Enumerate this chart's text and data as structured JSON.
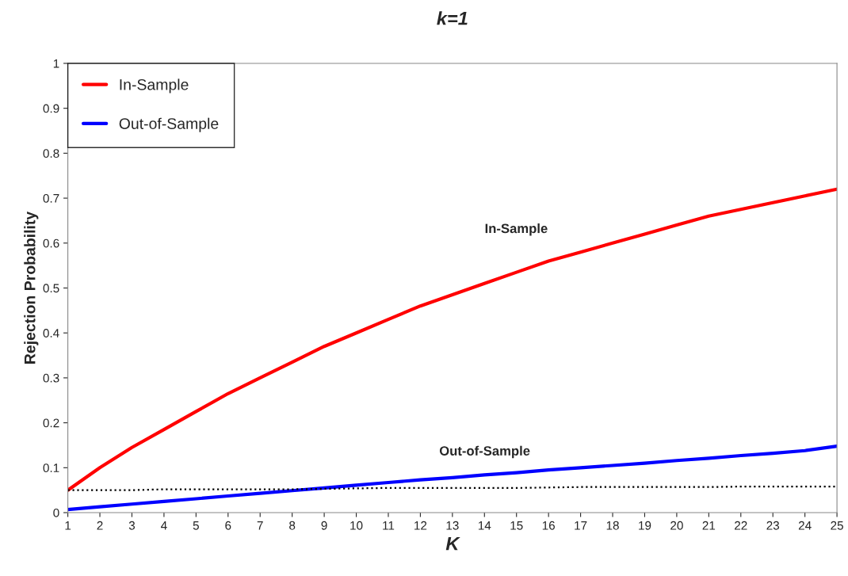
{
  "chart_data": {
    "type": "line",
    "title": "k=1",
    "xlabel": "K",
    "ylabel": "Rejection Probability",
    "x": [
      1,
      2,
      3,
      4,
      5,
      6,
      7,
      8,
      9,
      10,
      11,
      12,
      13,
      14,
      15,
      16,
      17,
      18,
      19,
      20,
      21,
      22,
      23,
      24,
      25
    ],
    "series": [
      {
        "name": "In-Sample",
        "color": "#ff0000",
        "line_style": "solid",
        "values": [
          0.05,
          0.1,
          0.145,
          0.185,
          0.225,
          0.265,
          0.3,
          0.335,
          0.37,
          0.4,
          0.43,
          0.46,
          0.485,
          0.51,
          0.535,
          0.56,
          0.58,
          0.6,
          0.62,
          0.64,
          0.66,
          0.675,
          0.69,
          0.705,
          0.72
        ]
      },
      {
        "name": "Out-of-Sample",
        "color": "#0000ff",
        "line_style": "solid",
        "values": [
          0.007,
          0.013,
          0.019,
          0.025,
          0.031,
          0.037,
          0.043,
          0.049,
          0.055,
          0.061,
          0.067,
          0.073,
          0.078,
          0.084,
          0.089,
          0.095,
          0.1,
          0.105,
          0.11,
          0.116,
          0.121,
          0.127,
          0.132,
          0.138,
          0.148
        ]
      },
      {
        "color": "#000000",
        "line_style": "dotted",
        "values": [
          0.05,
          0.05,
          0.05,
          0.052,
          0.052,
          0.052,
          0.052,
          0.052,
          0.053,
          0.054,
          0.055,
          0.055,
          0.055,
          0.055,
          0.055,
          0.056,
          0.057,
          0.057,
          0.057,
          0.057,
          0.057,
          0.058,
          0.058,
          0.058,
          0.058
        ]
      }
    ],
    "annotations": [
      "In-Sample",
      "Out-of-Sample"
    ],
    "xlim": [
      1,
      25
    ],
    "xticks": [
      1,
      2,
      3,
      4,
      5,
      6,
      7,
      8,
      9,
      10,
      11,
      12,
      13,
      14,
      15,
      16,
      17,
      18,
      19,
      20,
      21,
      22,
      23,
      24,
      25
    ],
    "ylim": [
      0,
      1
    ],
    "yticks": [
      0,
      0.1,
      0.2,
      0.3,
      0.4,
      0.5,
      0.6,
      0.7,
      0.8,
      0.9,
      1
    ],
    "grid": false,
    "legend": "top left",
    "marker": "none"
  }
}
